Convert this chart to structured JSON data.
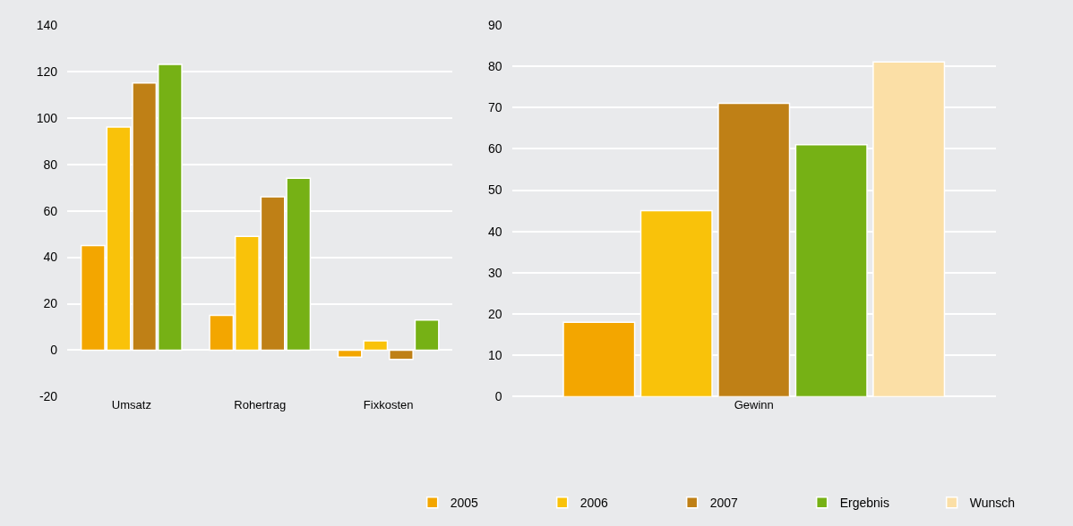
{
  "chart_data": [
    {
      "type": "bar",
      "categories": [
        "Umsatz",
        "Rohertrag",
        "Fixkosten"
      ],
      "ylim": [
        -20,
        140
      ],
      "yticks": [
        -20,
        0,
        20,
        40,
        60,
        80,
        100,
        120,
        140
      ],
      "grid": "y",
      "legend": "bottom",
      "series": [
        {
          "name": "2005",
          "color": "#f3a600",
          "values": [
            45,
            15,
            -3
          ]
        },
        {
          "name": "2006",
          "color": "#f9c20a",
          "values": [
            96,
            49,
            4
          ]
        },
        {
          "name": "2007",
          "color": "#bf8016",
          "values": [
            115,
            66,
            -4
          ]
        },
        {
          "name": "Ergebnis",
          "color": "#76b115",
          "values": [
            123,
            74,
            13
          ]
        }
      ]
    },
    {
      "type": "bar",
      "categories": [
        "Gewinn"
      ],
      "ylim": [
        0,
        90
      ],
      "yticks": [
        0,
        10,
        20,
        30,
        40,
        50,
        60,
        70,
        80,
        90
      ],
      "grid": "y",
      "legend": "bottom",
      "series": [
        {
          "color": "#f3a600",
          "values": [
            18
          ]
        },
        {
          "color": "#f9c20a",
          "values": [
            45
          ]
        },
        {
          "color": "#bf8016",
          "values": [
            71
          ]
        },
        {
          "color": "#76b115",
          "values": [
            61
          ]
        },
        {
          "name": "Wunsch",
          "color": "#fbdfa6",
          "values": [
            81
          ]
        }
      ]
    }
  ]
}
